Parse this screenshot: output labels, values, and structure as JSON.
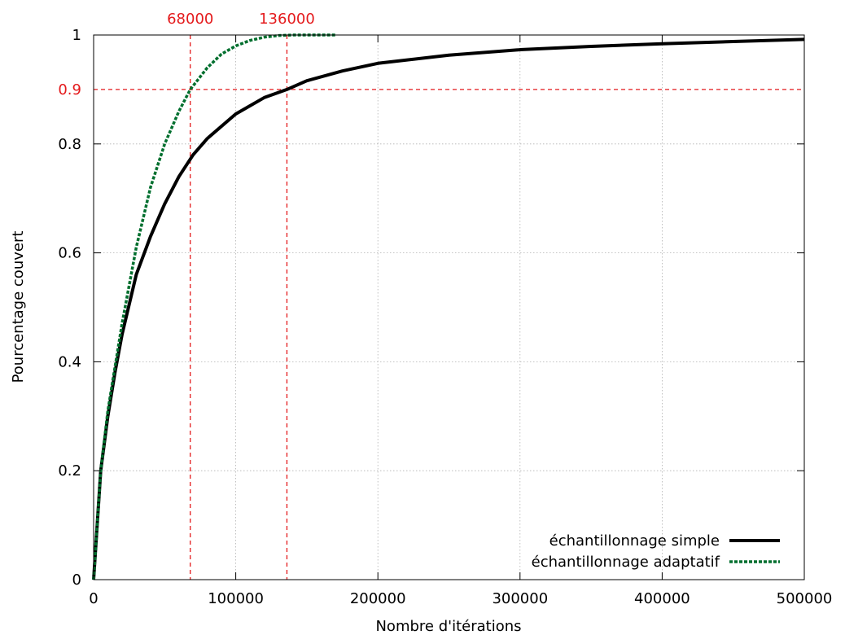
{
  "chart_data": {
    "type": "line",
    "xlabel": "Nombre d'itérations",
    "ylabel": "Pourcentage couvert",
    "xlim": [
      0,
      500000
    ],
    "ylim": [
      0,
      1
    ],
    "grid": true,
    "x_ticks": [
      0,
      100000,
      200000,
      300000,
      400000,
      500000
    ],
    "y_ticks": [
      0,
      0.2,
      0.4,
      0.6,
      0.8,
      1
    ],
    "legend_position": "bottom-right",
    "series": [
      {
        "name": "échantillonnage simple",
        "color": "#000000",
        "style": "solid",
        "points": [
          [
            0,
            0
          ],
          [
            5000,
            0.2
          ],
          [
            10000,
            0.3
          ],
          [
            15000,
            0.38
          ],
          [
            20000,
            0.45
          ],
          [
            30000,
            0.56
          ],
          [
            40000,
            0.63
          ],
          [
            50000,
            0.69
          ],
          [
            60000,
            0.74
          ],
          [
            70000,
            0.78
          ],
          [
            80000,
            0.81
          ],
          [
            100000,
            0.855
          ],
          [
            120000,
            0.885
          ],
          [
            136000,
            0.9
          ],
          [
            150000,
            0.916
          ],
          [
            175000,
            0.934
          ],
          [
            200000,
            0.948
          ],
          [
            250000,
            0.963
          ],
          [
            300000,
            0.973
          ],
          [
            350000,
            0.979
          ],
          [
            400000,
            0.984
          ],
          [
            450000,
            0.988
          ],
          [
            500000,
            0.992
          ]
        ]
      },
      {
        "name": "échantillonnage adaptatif",
        "color": "#006f2e",
        "style": "dashed",
        "points": [
          [
            0,
            0
          ],
          [
            5000,
            0.2
          ],
          [
            10000,
            0.31
          ],
          [
            15000,
            0.39
          ],
          [
            20000,
            0.47
          ],
          [
            30000,
            0.61
          ],
          [
            40000,
            0.72
          ],
          [
            50000,
            0.8
          ],
          [
            60000,
            0.86
          ],
          [
            68000,
            0.9
          ],
          [
            80000,
            0.94
          ],
          [
            90000,
            0.965
          ],
          [
            100000,
            0.98
          ],
          [
            110000,
            0.99
          ],
          [
            120000,
            0.996
          ],
          [
            130000,
            0.999
          ],
          [
            140000,
            1.0
          ],
          [
            170000,
            1.0
          ]
        ]
      }
    ],
    "reference_lines": [
      {
        "axis": "x",
        "value": 68000,
        "label": "68000",
        "color": "#e41a1c"
      },
      {
        "axis": "x",
        "value": 136000,
        "label": "136000",
        "color": "#e41a1c"
      },
      {
        "axis": "y",
        "value": 0.9,
        "label": "0.9",
        "color": "#e41a1c"
      }
    ]
  }
}
